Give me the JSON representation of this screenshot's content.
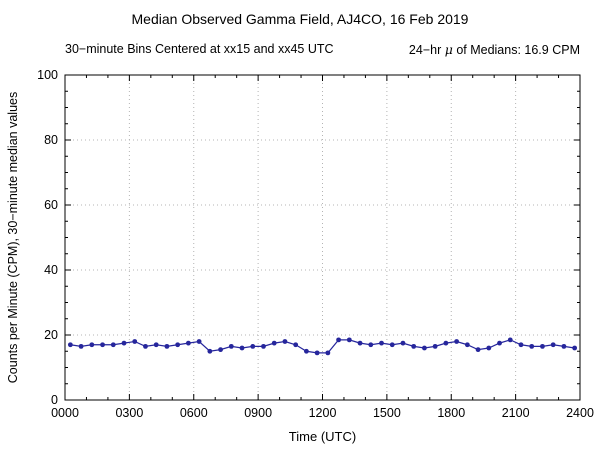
{
  "title": "Median Observed Gamma Field, AJ4CO, 16 Feb 2019",
  "subtitle": {
    "left": "30−minute Bins Centered at xx15 and xx45 UTC",
    "right_prefix": "24−hr ",
    "right_mu": "μ",
    "right_suffix": " of Medians: 16.9 CPM"
  },
  "chart_data": {
    "type": "line",
    "title": "Median Observed Gamma Field, AJ4CO, 16 Feb 2019",
    "xlabel": "Time (UTC)",
    "ylabel": "Counts per Minute (CPM), 30−minute median values",
    "xlim": [
      0,
      1440
    ],
    "ylim": [
      0,
      100
    ],
    "x_ticks": [
      "0000",
      "0300",
      "0600",
      "0900",
      "1200",
      "1500",
      "1800",
      "2100",
      "2400"
    ],
    "x_tick_values": [
      0,
      180,
      360,
      540,
      720,
      900,
      1080,
      1260,
      1440
    ],
    "y_ticks": [
      0,
      20,
      40,
      60,
      80,
      100
    ],
    "grid": true,
    "legend": "none",
    "line_color": "#26269c",
    "grid_color": "#b4b4b4",
    "x_minutes": [
      15,
      45,
      75,
      105,
      135,
      165,
      195,
      225,
      255,
      285,
      315,
      345,
      375,
      405,
      435,
      465,
      495,
      525,
      555,
      585,
      615,
      645,
      675,
      705,
      735,
      765,
      795,
      825,
      855,
      885,
      915,
      945,
      975,
      1005,
      1035,
      1065,
      1095,
      1125,
      1155,
      1185,
      1215,
      1245,
      1275,
      1305,
      1335,
      1365,
      1395,
      1425
    ],
    "values": [
      17,
      16.5,
      17,
      17,
      17,
      17.5,
      18,
      16.5,
      17,
      16.5,
      17,
      17.5,
      18,
      15,
      15.5,
      16.5,
      16,
      16.5,
      16.5,
      17.5,
      18,
      17,
      15,
      14.5,
      14.5,
      18.5,
      18.5,
      17.5,
      17,
      17.5,
      17,
      17.5,
      16.5,
      16,
      16.5,
      17.5,
      18,
      17,
      15.5,
      16,
      17.5,
      18.5,
      17,
      16.5,
      16.5,
      17,
      16.5,
      16
    ]
  }
}
